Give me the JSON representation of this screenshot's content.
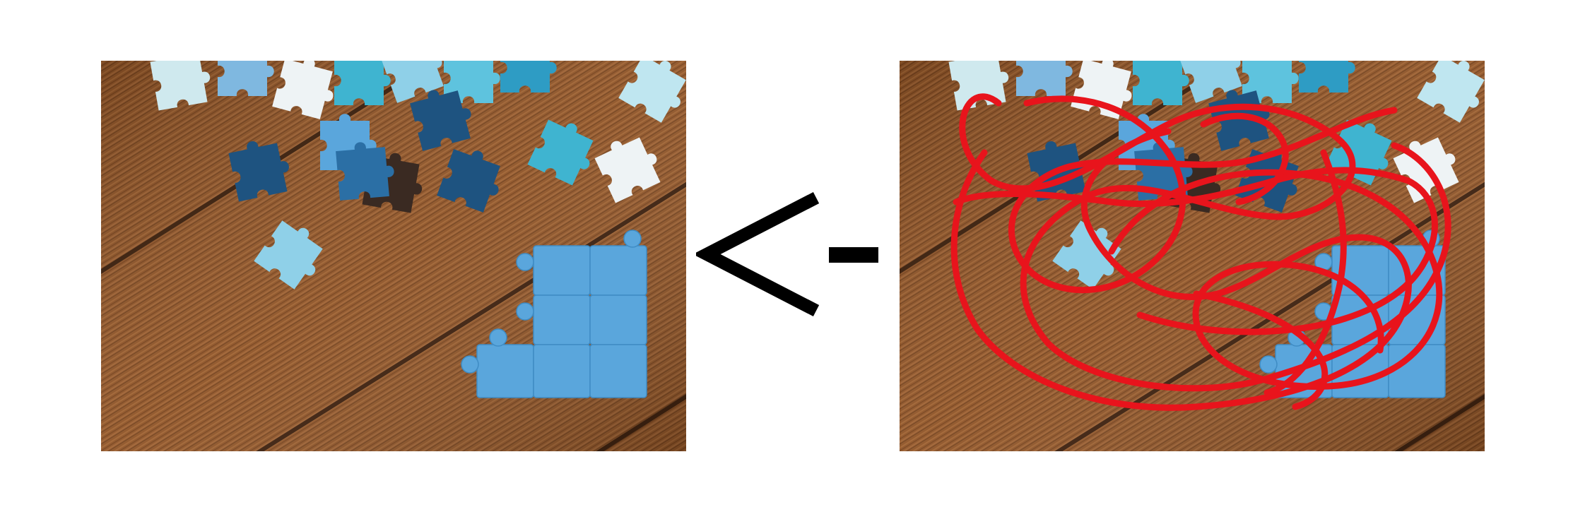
{
  "scene": {
    "background": "#ffffff",
    "left_panel": {
      "content": "wooden-table-with-puzzle-pieces"
    },
    "right_panel": {
      "content": "wooden-table-with-puzzle-pieces",
      "overlay": "red-scribble"
    },
    "arrow": {
      "glyph_name": "left-arrow-icon",
      "direction": "left"
    },
    "colors": {
      "wood_base": "#8e5326",
      "wood_light": "#b87a45",
      "wood_dark": "#5e3315",
      "plank_gap": "#3a1d0a",
      "puzzle_blue": "#5aa6dc",
      "puzzle_light": "#8fd0e8",
      "puzzle_cyan": "#3fb4d0",
      "puzzle_dark": "#1e5380",
      "puzzle_white": "#eef3f5",
      "scribble_red": "#e8141c",
      "arrow_black": "#000000"
    }
  }
}
